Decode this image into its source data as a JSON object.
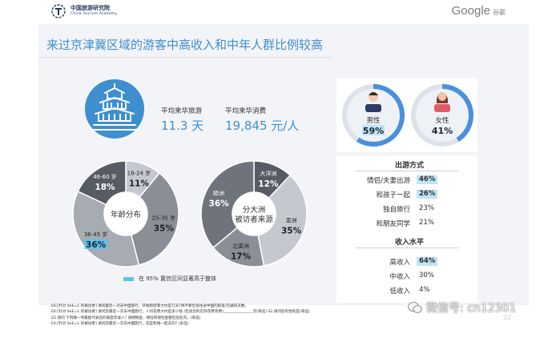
{
  "header": {
    "org_name_cn": "中国旅游研究院",
    "org_name_en": "China Tourism Academy",
    "google_wordmark": "Google",
    "google_cn": "谷歌"
  },
  "title": "来过京津冀区域的游客中高收入和中年人群比例较高",
  "stats": {
    "avg_days_label": "平均来华旅游",
    "avg_days_value": "11.3 天",
    "avg_spend_label": "平均来华消费",
    "avg_spend_value": "19,845 元/人"
  },
  "gender": {
    "male_label": "男性",
    "male_value": "59%",
    "female_label": "女性",
    "female_value": "41%"
  },
  "travel_mode": {
    "title": "出游方式",
    "rows": [
      {
        "label": "情侣/夫妻出游",
        "value": "46%",
        "highlight": true
      },
      {
        "label": "和孩子一起",
        "value": "26%",
        "highlight": true
      },
      {
        "label": "独自旅行",
        "value": "23%",
        "highlight": false
      },
      {
        "label": "和朋友同学",
        "value": "21%",
        "highlight": false
      }
    ]
  },
  "income": {
    "title": "收入水平",
    "rows": [
      {
        "label": "高收入",
        "value": "64%",
        "highlight": true
      },
      {
        "label": "中收入",
        "value": "30%",
        "highlight": false
      },
      {
        "label": "低收入",
        "value": "4%",
        "highlight": false
      }
    ]
  },
  "legend_text": "在 95% 置信区间显著高于整体",
  "footnotes": [
    "E6.[针对 SeE=1 的被访者] 请问最近一次去中国旅行，开始到结束大约是几天?请不要包含往返中国的航班/交通的天数。",
    "E6.[针对 SeE=1 的被访者] 请问您最近一次去中国旅行，人均花费大约是多少钱 (包含您的实际花费等费)________________元(单选)  S2.请问您的性别是(单选)",
    "Z2.请问 下列哪一项最能代表您的家庭年收入? 请把税金，保险和保险金都包括在内。(单选)",
    "E4.[针对 SeE=1 的被访者] 请问您最近一次去中国旅行，您是和谁一起去的? (多选)"
  ],
  "watermark": "微信号: cn12301",
  "page_number": "22",
  "colors": {
    "accent_blue": "#3d8fd0",
    "highlight_cyan": "#5bc1ee",
    "highlight_bg": "#bfe4f7",
    "dark_gray": "#575b63",
    "mid_gray": "#8a8e96",
    "light_gray": "#c5c8ce"
  },
  "chart_data": [
    {
      "type": "pie",
      "center_label": "年龄分布",
      "categories": [
        "18-24 岁",
        "25-35 岁",
        "36-45 岁",
        "46-60 岁"
      ],
      "values": [
        11,
        35,
        36,
        18
      ],
      "labels": [
        "11%",
        "35%",
        "36%",
        "18%"
      ],
      "colors": [
        "#c5c8ce",
        "#8a8e96",
        "#a7abb2",
        "#575b63"
      ],
      "highlighted": [
        "36-45 岁"
      ]
    },
    {
      "type": "pie",
      "center_label": "分大洲被访者来源",
      "categories": [
        "大洋洲",
        "亚洲",
        "北美洲",
        "欧洲"
      ],
      "values": [
        12,
        35,
        17,
        36
      ],
      "labels": [
        "12%",
        "35%",
        "17%",
        "36%"
      ],
      "colors": [
        "#575b63",
        "#c5c8ce",
        "#8a8e96",
        "#6f737b"
      ]
    }
  ]
}
